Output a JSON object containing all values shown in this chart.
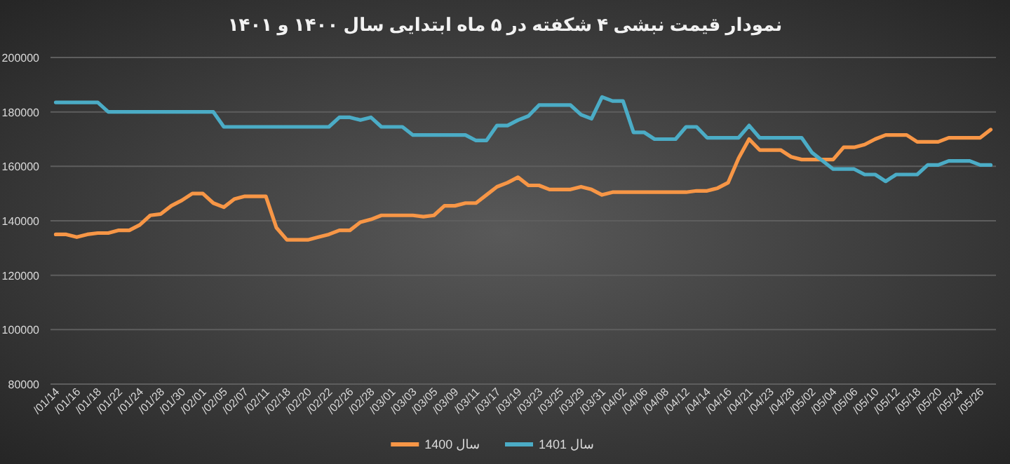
{
  "chart_data": {
    "type": "line",
    "title": "نمودار قیمت نبشی ۴ شکفته در ۵ ماه ابتدایی سال ۱۴۰۰ و ۱۴۰۱",
    "categories": [
      "/01/14",
      null,
      "/01/16",
      null,
      "/01/18",
      null,
      "/01/22",
      null,
      "/01/24",
      null,
      "/01/28",
      null,
      "/01/30",
      null,
      "/02/01",
      null,
      "/02/05",
      null,
      "/02/07",
      null,
      "/02/11",
      null,
      "/02/18",
      null,
      "/02/20",
      null,
      "/02/22",
      null,
      "/02/26",
      null,
      "/02/28",
      null,
      "/03/01",
      null,
      "/03/03",
      null,
      "/03/05",
      null,
      "/03/09",
      null,
      "/03/11",
      null,
      "/03/17",
      null,
      "/03/19",
      null,
      "/03/23",
      null,
      "/03/25",
      null,
      "/03/29",
      null,
      "/03/31",
      null,
      "/04/02",
      null,
      "/04/06",
      null,
      "/04/08",
      null,
      "/04/12",
      null,
      "/04/14",
      null,
      "/04/16",
      null,
      "/04/21",
      null,
      "/04/23",
      null,
      "/04/28",
      null,
      "/05/02",
      null,
      "/05/04",
      null,
      "/05/06",
      null,
      "/05/10",
      null,
      "/05/12",
      null,
      "/05/18",
      null,
      "/05/20",
      null,
      "/05/24",
      null,
      "/05/26",
      null
    ],
    "series": [
      {
        "name": "سال 1400",
        "color": "#f79646",
        "values": [
          135000,
          135000,
          134000,
          135000,
          135500,
          135500,
          136500,
          136500,
          138500,
          142000,
          142500,
          145500,
          147500,
          150000,
          150000,
          146500,
          145000,
          148000,
          149000,
          149000,
          149000,
          137500,
          133000,
          133000,
          133000,
          134000,
          135000,
          136500,
          136500,
          139500,
          140500,
          142000,
          142000,
          142000,
          142000,
          141500,
          142000,
          145500,
          145500,
          146500,
          146500,
          149500,
          152500,
          154000,
          156000,
          153000,
          153000,
          151500,
          151500,
          151500,
          152500,
          151500,
          149500,
          150500,
          150500,
          150500,
          150500,
          150500,
          150500,
          150500,
          150500,
          151000,
          151000,
          152000,
          154000,
          163000,
          170000,
          166000,
          166000,
          166000,
          163500,
          162500,
          162500,
          162500,
          162500,
          167000,
          167000,
          168000,
          170000,
          171500,
          171500,
          171500,
          169000,
          169000,
          169000,
          170500,
          170500,
          170500,
          170500,
          173500
        ]
      },
      {
        "name": "سال 1401",
        "color": "#4bacc6",
        "values": [
          183500,
          183500,
          183500,
          183500,
          183500,
          180000,
          180000,
          180000,
          180000,
          180000,
          180000,
          180000,
          180000,
          180000,
          180000,
          180000,
          174500,
          174500,
          174500,
          174500,
          174500,
          174500,
          174500,
          174500,
          174500,
          174500,
          174500,
          178000,
          178000,
          177000,
          178000,
          174500,
          174500,
          174500,
          171500,
          171500,
          171500,
          171500,
          171500,
          171500,
          169500,
          169500,
          175000,
          175000,
          177000,
          178500,
          182500,
          182500,
          182500,
          182500,
          179000,
          177500,
          185500,
          184000,
          184000,
          172500,
          172500,
          170000,
          170000,
          170000,
          174500,
          174500,
          170500,
          170500,
          170500,
          170500,
          175000,
          170500,
          170500,
          170500,
          170500,
          170500,
          165000,
          162000,
          159000,
          159000,
          159000,
          157000,
          157000,
          154500,
          157000,
          157000,
          157000,
          160500,
          160500,
          162000,
          162000,
          162000,
          160500,
          160500
        ]
      }
    ],
    "ylim": [
      80000,
      200000
    ],
    "yticks": [
      80000,
      100000,
      120000,
      140000,
      160000,
      180000,
      200000
    ],
    "grid": "y",
    "legend": "bottom"
  }
}
